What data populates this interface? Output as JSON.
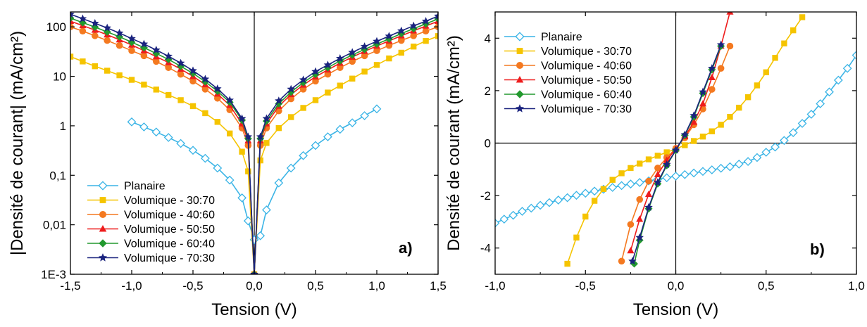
{
  "chart_data": [
    {
      "type": "scatter",
      "panel_label": "a)",
      "xlabel": "Tension  (V)",
      "ylabel": "|Densité de courant| (mA/cm²)",
      "xlim": [
        -1.5,
        1.5
      ],
      "ylim": [
        0.001,
        200
      ],
      "yscale": "log",
      "x_ticks": [
        -1.5,
        -1.0,
        -0.5,
        0.0,
        0.5,
        1.0,
        1.5
      ],
      "x_tick_labels": [
        "-1,5",
        "-1,0",
        "-0,5",
        "0,0",
        "0,5",
        "1,0",
        "1,5"
      ],
      "y_ticks": [
        0.001,
        0.01,
        0.1,
        1,
        10,
        100
      ],
      "y_tick_labels": [
        "1E-3",
        "0,01",
        "0,1",
        "1",
        "10",
        "100"
      ],
      "legend_position": "bottom-left",
      "series": [
        {
          "name": "Planaire",
          "color": "#3ab4e6",
          "marker": "diamond-open",
          "x": [
            -1.0,
            -0.9,
            -0.8,
            -0.7,
            -0.6,
            -0.5,
            -0.4,
            -0.3,
            -0.2,
            -0.1,
            -0.05,
            0.0,
            0.05,
            0.1,
            0.2,
            0.3,
            0.4,
            0.5,
            0.6,
            0.7,
            0.8,
            0.9,
            1.0
          ],
          "y": [
            1.2,
            0.95,
            0.75,
            0.58,
            0.44,
            0.32,
            0.22,
            0.14,
            0.08,
            0.035,
            0.012,
            0.005,
            0.006,
            0.02,
            0.07,
            0.14,
            0.25,
            0.4,
            0.6,
            0.85,
            1.15,
            1.6,
            2.2
          ]
        },
        {
          "name": "Volumique - 30:70",
          "color": "#f5c400",
          "marker": "square",
          "x": [
            -1.5,
            -1.4,
            -1.3,
            -1.2,
            -1.1,
            -1.0,
            -0.9,
            -0.8,
            -0.7,
            -0.6,
            -0.5,
            -0.4,
            -0.3,
            -0.2,
            -0.1,
            -0.05,
            0.0,
            0.05,
            0.1,
            0.2,
            0.3,
            0.4,
            0.5,
            0.6,
            0.7,
            0.8,
            0.9,
            1.0,
            1.1,
            1.2,
            1.3,
            1.4,
            1.5
          ],
          "y": [
            25,
            20,
            16,
            13,
            10.5,
            8.5,
            6.8,
            5.4,
            4.2,
            3.3,
            2.5,
            1.8,
            1.2,
            0.7,
            0.3,
            0.12,
            0.001,
            0.2,
            0.45,
            0.9,
            1.5,
            2.3,
            3.3,
            4.7,
            6.5,
            9,
            12.5,
            17,
            23,
            30,
            40,
            52,
            65
          ]
        },
        {
          "name": "Volumique  - 40:60",
          "color": "#f47920",
          "marker": "circle",
          "x": [
            -1.5,
            -1.4,
            -1.3,
            -1.2,
            -1.1,
            -1.0,
            -0.9,
            -0.8,
            -0.7,
            -0.6,
            -0.5,
            -0.4,
            -0.3,
            -0.2,
            -0.1,
            -0.05,
            0.0,
            0.05,
            0.1,
            0.2,
            0.3,
            0.4,
            0.5,
            0.6,
            0.7,
            0.8,
            0.9,
            1.0,
            1.1,
            1.2,
            1.3,
            1.4,
            1.5
          ],
          "y": [
            100,
            82,
            66,
            53,
            42,
            33,
            26,
            20,
            15,
            11,
            8,
            5.5,
            3.6,
            2.1,
            0.9,
            0.4,
            0.001,
            0.4,
            0.9,
            2.0,
            3.5,
            5.5,
            8,
            11,
            15,
            20,
            26,
            33,
            42,
            53,
            66,
            82,
            100
          ]
        },
        {
          "name": "Volumique  - 50:50",
          "color": "#ee1c1c",
          "marker": "triangle",
          "x": [
            -1.5,
            -1.4,
            -1.3,
            -1.2,
            -1.1,
            -1.0,
            -0.9,
            -0.8,
            -0.7,
            -0.6,
            -0.5,
            -0.4,
            -0.3,
            -0.2,
            -0.1,
            -0.05,
            0.0,
            0.05,
            0.1,
            0.2,
            0.3,
            0.4,
            0.5,
            0.6,
            0.7,
            0.8,
            0.9,
            1.0,
            1.1,
            1.2,
            1.3,
            1.4,
            1.5
          ],
          "y": [
            130,
            106,
            86,
            69,
            55,
            43,
            33,
            25,
            19,
            14,
            10,
            6.8,
            4.4,
            2.6,
            1.1,
            0.5,
            0.001,
            0.5,
            1.1,
            2.5,
            4.3,
            6.7,
            9.8,
            13.5,
            18.5,
            24.5,
            32,
            41,
            52,
            66,
            83,
            104,
            130
          ]
        },
        {
          "name": "Volumique  - 60:40",
          "color": "#22992e",
          "marker": "diamond",
          "x": [
            -1.5,
            -1.4,
            -1.3,
            -1.2,
            -1.1,
            -1.0,
            -0.9,
            -0.8,
            -0.7,
            -0.6,
            -0.5,
            -0.4,
            -0.3,
            -0.2,
            -0.1,
            -0.05,
            0.0,
            0.05,
            0.1,
            0.2,
            0.3,
            0.4,
            0.5,
            0.6,
            0.7,
            0.8,
            0.9,
            1.0,
            1.1,
            1.2,
            1.3,
            1.4,
            1.5
          ],
          "y": [
            150,
            122,
            99,
            79,
            63,
            49,
            38,
            29,
            22,
            16,
            11.5,
            7.8,
            5,
            3,
            1.3,
            0.55,
            0.001,
            0.55,
            1.25,
            2.8,
            4.8,
            7.5,
            11,
            15,
            20.5,
            27,
            35,
            45,
            57,
            73,
            92,
            115,
            145
          ]
        },
        {
          "name": "Volumique  - 70:30",
          "color": "#1a237e",
          "marker": "star",
          "x": [
            -1.5,
            -1.4,
            -1.3,
            -1.2,
            -1.1,
            -1.0,
            -0.9,
            -0.8,
            -0.7,
            -0.6,
            -0.5,
            -0.4,
            -0.3,
            -0.2,
            -0.1,
            -0.05,
            0.0,
            0.05,
            0.1,
            0.2,
            0.3,
            0.4,
            0.5,
            0.6,
            0.7,
            0.8,
            0.9,
            1.0,
            1.1,
            1.2,
            1.3,
            1.4,
            1.5
          ],
          "y": [
            180,
            146,
            118,
            95,
            75,
            58,
            45,
            34,
            25.5,
            18.5,
            13,
            8.8,
            5.6,
            3.3,
            1.4,
            0.6,
            0.001,
            0.6,
            1.4,
            3.2,
            5.5,
            8.5,
            12.5,
            17,
            23,
            30.5,
            40,
            51,
            65,
            83,
            105,
            130,
            165
          ]
        }
      ]
    },
    {
      "type": "scatter",
      "panel_label": "b)",
      "xlabel": "Tension (V)",
      "ylabel": "Densité de courant (mA/cm²)",
      "xlim": [
        -1.0,
        1.0
      ],
      "ylim": [
        -5,
        5
      ],
      "x_ticks": [
        -1.0,
        -0.5,
        0.0,
        0.5,
        1.0
      ],
      "x_tick_labels": [
        "-1,0",
        "-0,5",
        "0,0",
        "0,5",
        "1,0"
      ],
      "y_ticks": [
        -4,
        -2,
        0,
        2,
        4
      ],
      "y_tick_labels": [
        "-4",
        "-2",
        "0",
        "2",
        "4"
      ],
      "legend_position": "top-left",
      "series": [
        {
          "name": "Planaire",
          "color": "#3ab4e6",
          "marker": "diamond-open",
          "x": [
            -1.0,
            -0.95,
            -0.9,
            -0.85,
            -0.8,
            -0.75,
            -0.7,
            -0.65,
            -0.6,
            -0.55,
            -0.5,
            -0.45,
            -0.4,
            -0.35,
            -0.3,
            -0.25,
            -0.2,
            -0.15,
            -0.1,
            -0.05,
            0.0,
            0.05,
            0.1,
            0.15,
            0.2,
            0.25,
            0.3,
            0.35,
            0.4,
            0.45,
            0.5,
            0.55,
            0.6,
            0.65,
            0.7,
            0.75,
            0.8,
            0.85,
            0.9,
            0.95,
            1.0
          ],
          "y": [
            -3.05,
            -2.9,
            -2.75,
            -2.6,
            -2.48,
            -2.37,
            -2.27,
            -2.17,
            -2.08,
            -1.99,
            -1.91,
            -1.83,
            -1.76,
            -1.69,
            -1.62,
            -1.56,
            -1.5,
            -1.44,
            -1.38,
            -1.32,
            -1.26,
            -1.2,
            -1.14,
            -1.08,
            -1.02,
            -0.96,
            -0.9,
            -0.8,
            -0.7,
            -0.55,
            -0.35,
            -0.15,
            0.1,
            0.4,
            0.75,
            1.1,
            1.5,
            1.95,
            2.4,
            2.85,
            3.35
          ]
        },
        {
          "name": "Volumique - 30:70",
          "color": "#f5c400",
          "marker": "square",
          "x": [
            -0.6,
            -0.55,
            -0.5,
            -0.45,
            -0.4,
            -0.35,
            -0.3,
            -0.25,
            -0.2,
            -0.15,
            -0.1,
            -0.05,
            0.0,
            0.05,
            0.1,
            0.15,
            0.2,
            0.25,
            0.3,
            0.35,
            0.4,
            0.45,
            0.5,
            0.55,
            0.6,
            0.65,
            0.7
          ],
          "y": [
            -4.6,
            -3.6,
            -2.8,
            -2.2,
            -1.75,
            -1.4,
            -1.15,
            -0.95,
            -0.78,
            -0.62,
            -0.48,
            -0.35,
            -0.22,
            -0.08,
            0.08,
            0.25,
            0.45,
            0.7,
            1.0,
            1.35,
            1.75,
            2.2,
            2.7,
            3.25,
            3.8,
            4.3,
            4.8
          ]
        },
        {
          "name": "Volumique - 40:60",
          "color": "#f47920",
          "marker": "circle",
          "x": [
            -0.3,
            -0.25,
            -0.2,
            -0.15,
            -0.1,
            -0.05,
            0.0,
            0.05,
            0.1,
            0.15,
            0.2,
            0.25,
            0.3
          ],
          "y": [
            -4.5,
            -3.1,
            -2.15,
            -1.45,
            -0.95,
            -0.55,
            -0.2,
            0.2,
            0.7,
            1.3,
            2.05,
            2.85,
            3.7
          ]
        },
        {
          "name": "Volumique - 50:50",
          "color": "#ee1c1c",
          "marker": "triangle",
          "x": [
            -0.25,
            -0.2,
            -0.15,
            -0.1,
            -0.05,
            0.0,
            0.05,
            0.1,
            0.15,
            0.2,
            0.25,
            0.3
          ],
          "y": [
            -4.1,
            -2.9,
            -1.95,
            -1.2,
            -0.65,
            -0.22,
            0.25,
            0.8,
            1.5,
            2.5,
            3.7,
            5.0
          ]
        },
        {
          "name": "Volumique - 60:40",
          "color": "#22992e",
          "marker": "diamond",
          "x": [
            -0.23,
            -0.2,
            -0.15,
            -0.1,
            -0.05,
            0.0,
            0.05,
            0.1,
            0.15,
            0.2,
            0.25
          ],
          "y": [
            -4.6,
            -3.7,
            -2.5,
            -1.55,
            -0.85,
            -0.28,
            0.3,
            1.0,
            1.9,
            2.8,
            3.7
          ]
        },
        {
          "name": "Volumique - 70:30",
          "color": "#1a237e",
          "marker": "star",
          "x": [
            -0.24,
            -0.2,
            -0.15,
            -0.1,
            -0.05,
            0.0,
            0.05,
            0.1,
            0.15,
            0.2,
            0.25
          ],
          "y": [
            -4.5,
            -3.6,
            -2.45,
            -1.5,
            -0.82,
            -0.27,
            0.32,
            1.05,
            1.95,
            2.85,
            3.75
          ]
        }
      ]
    }
  ]
}
